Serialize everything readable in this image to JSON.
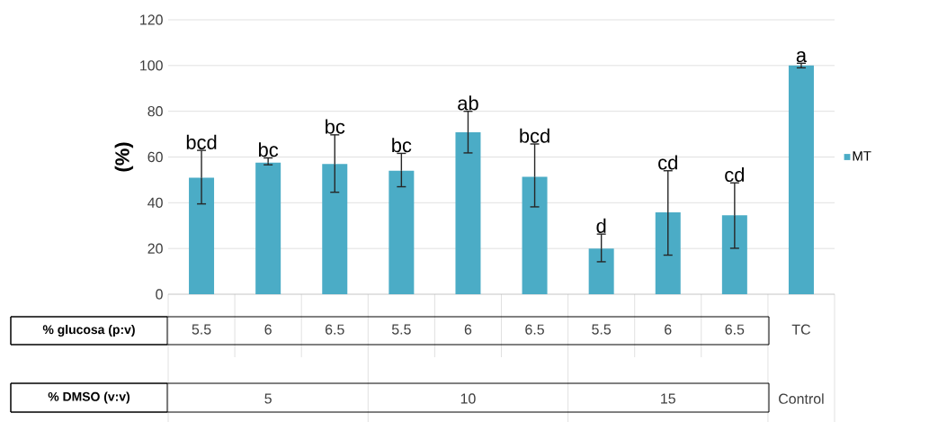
{
  "chart_data": {
    "type": "bar",
    "ylabel": "(%)",
    "categories": [
      "5.5",
      "6",
      "6.5",
      "5.5",
      "6",
      "6.5",
      "5.5",
      "6",
      "6.5",
      "TC"
    ],
    "series": [
      {
        "name": "MT",
        "color": "#4bacc6",
        "values": [
          51,
          57.5,
          57,
          54,
          70.8,
          51.3,
          20,
          35.8,
          34.5,
          100
        ],
        "errors": [
          [
            39.5,
            62.9
          ],
          [
            56.6,
            59.6
          ],
          [
            44.6,
            69.7
          ],
          [
            47,
            61.6
          ],
          [
            61.8,
            80
          ],
          [
            38.2,
            65.7
          ],
          [
            14.2,
            26.3
          ],
          [
            17.1,
            54
          ],
          [
            20.1,
            48.7
          ],
          [
            99,
            101
          ]
        ],
        "value_labels": [
          "bcd",
          "bc",
          "bc",
          "bc",
          "ab",
          "bcd",
          "d",
          "cd",
          "cd",
          "a"
        ]
      }
    ],
    "ylim": [
      0,
      120
    ],
    "yticks": [
      0,
      20,
      40,
      60,
      80,
      100,
      120
    ],
    "grid": "y",
    "legend": "right",
    "annotations": [
      "% glucosa (p:v)",
      "% DMSO (v:v)",
      "5",
      "10",
      "15",
      "Control"
    ]
  }
}
